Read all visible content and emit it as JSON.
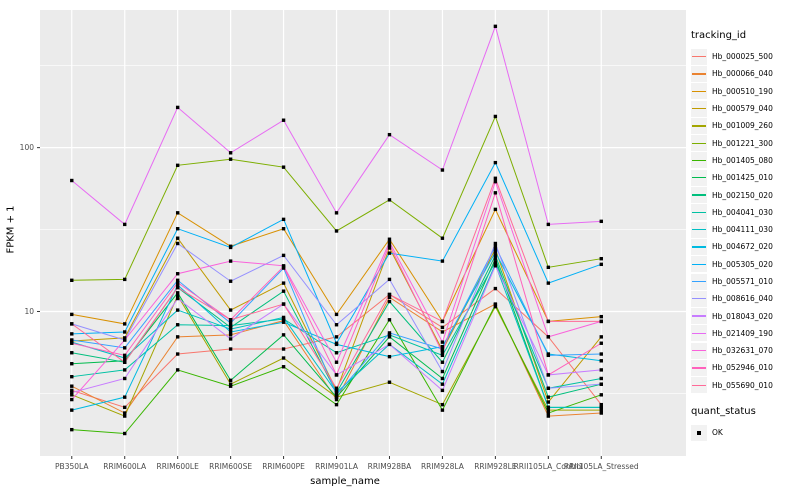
{
  "figure": {
    "background": "#FFFFFF",
    "panel_bg": "#EBEBEB",
    "grid_color": "#FFFFFF",
    "tick_label_color": "#4D4D4D",
    "tick_mark_color": "#333333",
    "marker_color": "#000000",
    "legend_key_bg": "#F2F2F2"
  },
  "legend": {
    "tracking_title": "tracking_id",
    "quant_title": "quant_status",
    "quant_items": [
      {
        "label": "OK",
        "marker": "black-square"
      }
    ]
  },
  "chart_data": {
    "type": "line",
    "title": "",
    "xlabel": "sample_name",
    "ylabel": "FPKM + 1",
    "y_scale": "log10",
    "y_ticks": [
      10,
      100
    ],
    "y_minor_ticks": [
      3.162,
      31.62,
      316.2
    ],
    "ylim_log10": [
      0.118,
      2.84
    ],
    "grid": true,
    "legend_position": "right",
    "marker": "black-square",
    "categories": [
      "PB350LA",
      "RRIM600LA",
      "RRIM600LE",
      "RRIM600SE",
      "RRIM600PE",
      "RRIM901LA",
      "RRIM928BA",
      "RRIM928LA",
      "RRIM928LE",
      "RRII105LA_Control",
      "RRII105LA_Stressed"
    ],
    "series": [
      {
        "name": "Hb_000025_500",
        "color": "#F8766D",
        "values": [
          3.3,
          2.6,
          5.5,
          5.9,
          5.9,
          7.0,
          12.7,
          8.0,
          13.8,
          7.0,
          2.7
        ]
      },
      {
        "name": "Hb_000066_040",
        "color": "#EA8331",
        "values": [
          3.5,
          2.4,
          7.0,
          7.2,
          8.8,
          2.9,
          12.2,
          7.5,
          11.1,
          2.3,
          2.4
        ]
      },
      {
        "name": "Hb_000510_190",
        "color": "#D89000",
        "values": [
          9.6,
          8.4,
          40,
          25,
          32,
          9.6,
          27.6,
          8.7,
          42,
          8.7,
          9.3
        ]
      },
      {
        "name": "Hb_000579_040",
        "color": "#C09B00",
        "values": [
          6.6,
          6.9,
          28,
          10.2,
          14.9,
          3.3,
          24.4,
          5.8,
          24,
          2.8,
          7.0
        ]
      },
      {
        "name": "Hb_001009_260",
        "color": "#A3A500",
        "values": [
          3.1,
          2.3,
          12.5,
          3.6,
          5.2,
          3.0,
          3.7,
          2.7,
          10.7,
          2.5,
          2.5
        ]
      },
      {
        "name": "Hb_001221_300",
        "color": "#7CAE00",
        "values": [
          15.5,
          15.7,
          78,
          85,
          76,
          31,
          48,
          28,
          155,
          18.6,
          21
        ]
      },
      {
        "name": "Hb_001405_080",
        "color": "#39B600",
        "values": [
          1.9,
          1.8,
          4.4,
          3.5,
          4.6,
          2.7,
          8.9,
          2.5,
          11.0,
          2.4,
          3.1
        ]
      },
      {
        "name": "Hb_001425_010",
        "color": "#00BB4E",
        "values": [
          4.8,
          5.0,
          13,
          3.8,
          7.2,
          3.0,
          7.0,
          3.9,
          21,
          2.6,
          2.6
        ]
      },
      {
        "name": "Hb_002150_020",
        "color": "#00BF7D",
        "values": [
          5.6,
          4.9,
          14,
          8.0,
          13.3,
          3.2,
          11.5,
          4.9,
          22,
          3.0,
          3.6
        ]
      },
      {
        "name": "Hb_004041_030",
        "color": "#00C1A3",
        "values": [
          4.0,
          4.4,
          8.3,
          8.2,
          9.0,
          5.6,
          7.2,
          5.4,
          20,
          3.4,
          3.9
        ]
      },
      {
        "name": "Hb_004111_030",
        "color": "#00BFC4",
        "values": [
          6.5,
          5.2,
          10.2,
          7.8,
          9.2,
          3.2,
          6.3,
          3.6,
          19.4,
          2.6,
          2.6
        ]
      },
      {
        "name": "Hb_004672_020",
        "color": "#00BAE0",
        "values": [
          2.5,
          3.0,
          14.5,
          7.5,
          8.6,
          6.3,
          5.3,
          6.1,
          23,
          5.5,
          5.0
        ]
      },
      {
        "name": "Hb_005305_020",
        "color": "#00B0F6",
        "values": [
          7.3,
          7.5,
          32,
          24.6,
          36.5,
          6.4,
          22.7,
          20.3,
          81,
          14.9,
          19.4
        ]
      },
      {
        "name": "Hb_005571_010",
        "color": "#35A2FF",
        "values": [
          6.7,
          6.0,
          15.5,
          8.5,
          18.4,
          3.1,
          7.4,
          5.9,
          25,
          5.4,
          5.5
        ]
      },
      {
        "name": "Hb_008616_040",
        "color": "#9590FF",
        "values": [
          8.4,
          6.7,
          26,
          15.3,
          22,
          8.3,
          15.7,
          4.3,
          26,
          3.4,
          3.6
        ]
      },
      {
        "name": "Hb_018043_020",
        "color": "#C77CFF",
        "values": [
          3.2,
          3.9,
          12,
          6.8,
          11.1,
          4.1,
          6.3,
          3.3,
          19,
          4.1,
          4.4
        ]
      },
      {
        "name": "Hb_021409_190",
        "color": "#E76BF3",
        "values": [
          63,
          34,
          176,
          93,
          147,
          40,
          120,
          73,
          550,
          34,
          35.5
        ]
      },
      {
        "name": "Hb_032631_070",
        "color": "#FA62DB",
        "values": [
          2.9,
          6.7,
          17,
          20.3,
          19,
          4.9,
          26.5,
          6.5,
          62,
          7.0,
          8.7
        ]
      },
      {
        "name": "Hb_052946_010",
        "color": "#FF62BC",
        "values": [
          6.4,
          5.4,
          15,
          8.9,
          18.8,
          4.1,
          25.5,
          5.6,
          53,
          4.1,
          6.4
        ]
      },
      {
        "name": "Hb_055690_010",
        "color": "#FF6A98",
        "values": [
          8.4,
          4.9,
          14,
          8.9,
          11.1,
          3.4,
          12.7,
          8.7,
          65,
          8.7,
          8.7
        ]
      }
    ]
  }
}
